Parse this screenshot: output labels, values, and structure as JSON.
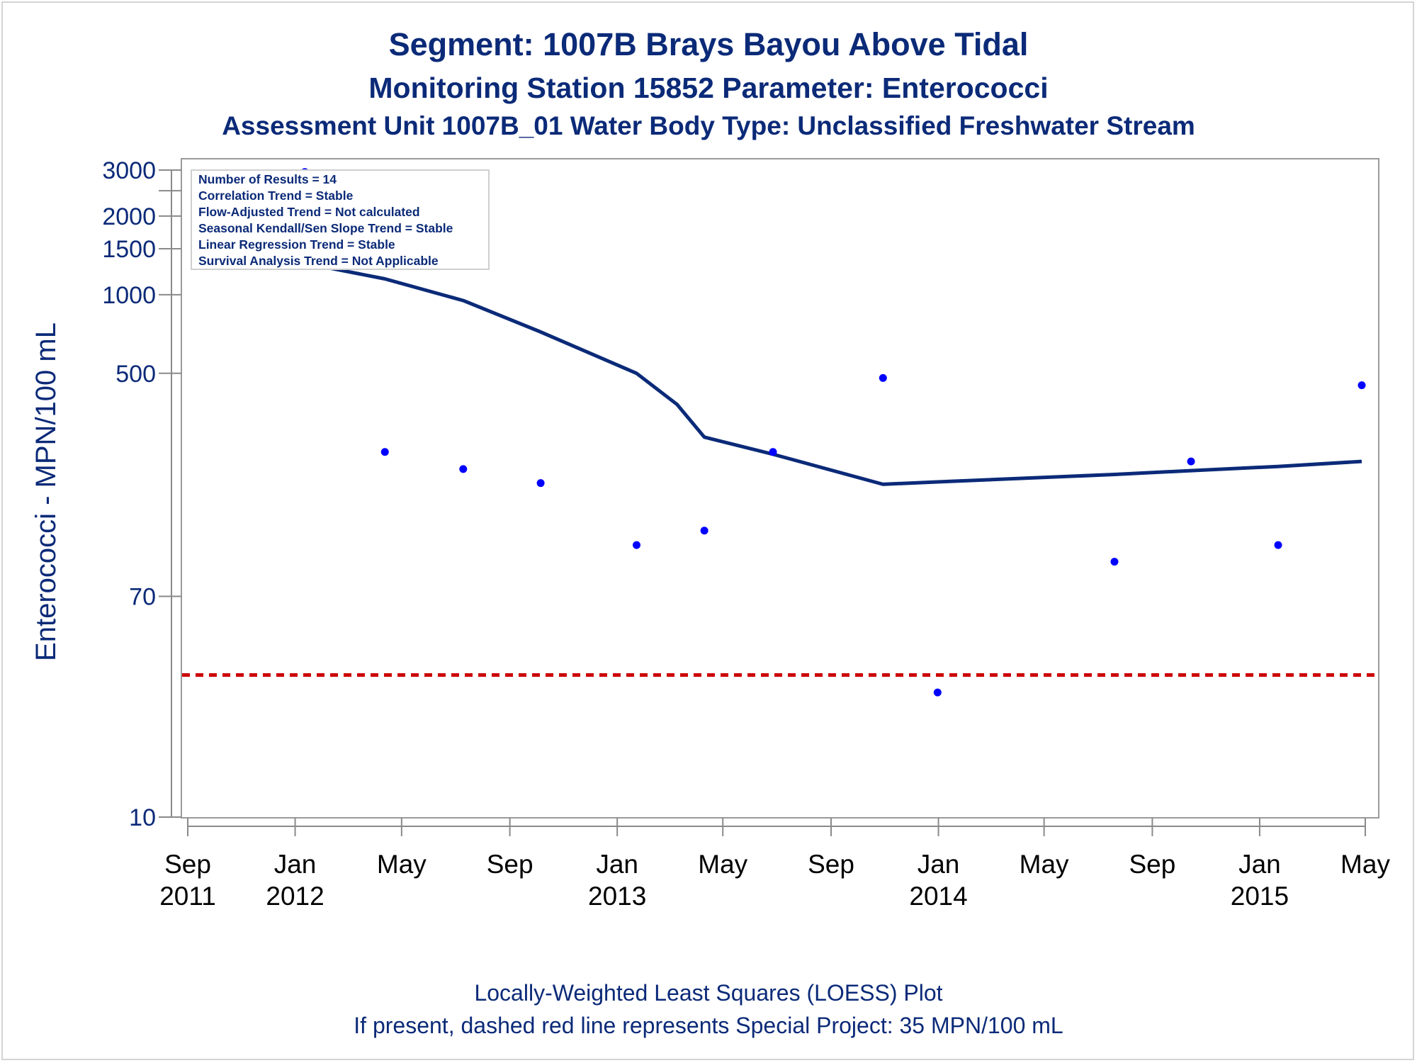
{
  "chart_data": {
    "type": "scatter",
    "title": "Segment: 1007B  Brays Bayou Above Tidal",
    "subtitle": "Monitoring Station 15852 Parameter: Enterococci",
    "subtitle2": "Assessment Unit 1007B_01   Water Body Type: Unclassified Freshwater Stream",
    "ylabel": "Enterococci - MPN/100 mL",
    "xlabel": "",
    "yscale": "log",
    "ylim": [
      10,
      3000
    ],
    "xlim": [
      "2011-09-01",
      "2015-05-01"
    ],
    "yticks": [
      10,
      70,
      500,
      1000,
      1500,
      2000,
      3000
    ],
    "ytick_labels": [
      "10",
      "70",
      "500",
      "1000",
      "1500",
      "2000",
      "3000"
    ],
    "xticks": [
      {
        "date": "2011-09-01",
        "label": "Sep",
        "year": "2011"
      },
      {
        "date": "2012-01-01",
        "label": "Jan",
        "year": "2012"
      },
      {
        "date": "2012-05-01",
        "label": "May",
        "year": ""
      },
      {
        "date": "2012-09-01",
        "label": "Sep",
        "year": ""
      },
      {
        "date": "2013-01-01",
        "label": "Jan",
        "year": "2013"
      },
      {
        "date": "2013-05-01",
        "label": "May",
        "year": ""
      },
      {
        "date": "2013-09-01",
        "label": "Sep",
        "year": ""
      },
      {
        "date": "2014-01-01",
        "label": "Jan",
        "year": "2014"
      },
      {
        "date": "2014-05-01",
        "label": "May",
        "year": ""
      },
      {
        "date": "2014-09-01",
        "label": "Sep",
        "year": ""
      },
      {
        "date": "2015-01-01",
        "label": "Jan",
        "year": "2015"
      },
      {
        "date": "2015-05-01",
        "label": "May",
        "year": ""
      }
    ],
    "series": [
      {
        "type": "scatter",
        "color": "#0000ff",
        "points": [
          {
            "x": "2011-11-26",
            "y": 1600
          },
          {
            "x": "2012-01-12",
            "y": 2950
          },
          {
            "x": "2012-04-12",
            "y": 250
          },
          {
            "x": "2012-07-10",
            "y": 215
          },
          {
            "x": "2012-10-06",
            "y": 190
          },
          {
            "x": "2013-01-23",
            "y": 110
          },
          {
            "x": "2013-04-10",
            "y": 125
          },
          {
            "x": "2013-06-27",
            "y": 250
          },
          {
            "x": "2013-10-30",
            "y": 480
          },
          {
            "x": "2013-12-31",
            "y": 30
          },
          {
            "x": "2014-07-20",
            "y": 95
          },
          {
            "x": "2014-10-15",
            "y": 230
          },
          {
            "x": "2015-01-22",
            "y": 110
          },
          {
            "x": "2015-04-27",
            "y": 450
          }
        ]
      },
      {
        "type": "line",
        "color": "#0b2a78",
        "points": [
          {
            "x": "2011-11-26",
            "y": 1450
          },
          {
            "x": "2012-01-12",
            "y": 1320
          },
          {
            "x": "2012-04-12",
            "y": 1150
          },
          {
            "x": "2012-07-10",
            "y": 950
          },
          {
            "x": "2012-10-06",
            "y": 720
          },
          {
            "x": "2013-01-23",
            "y": 500
          },
          {
            "x": "2013-03-10",
            "y": 380
          },
          {
            "x": "2013-04-10",
            "y": 285
          },
          {
            "x": "2013-06-27",
            "y": 245
          },
          {
            "x": "2013-10-30",
            "y": 188
          },
          {
            "x": "2013-12-31",
            "y": 192
          },
          {
            "x": "2014-07-20",
            "y": 205
          },
          {
            "x": "2014-10-15",
            "y": 212
          },
          {
            "x": "2015-01-22",
            "y": 220
          },
          {
            "x": "2015-04-27",
            "y": 230
          }
        ]
      }
    ],
    "reference_line": {
      "y": 35,
      "color": "#cc0000",
      "style": "dashed"
    },
    "stats_box": [
      "Number of Results = 14",
      "Correlation Trend = Stable",
      "Flow-Adjusted Trend = Not calculated",
      "Seasonal Kendall/Sen Slope Trend = Stable",
      "Linear Regression Trend = Stable",
      "Survival Analysis Trend = Not Applicable"
    ],
    "footnotes": [
      "Locally-Weighted Least Squares (LOESS) Plot",
      "If present, dashed red line represents Special Project: 35 MPN/100 mL"
    ],
    "colors": {
      "text": "#0b2a78",
      "points": "#0000ff",
      "loess": "#0b2a78",
      "reference": "#cc0000",
      "frame": "#9a9a9a"
    }
  }
}
